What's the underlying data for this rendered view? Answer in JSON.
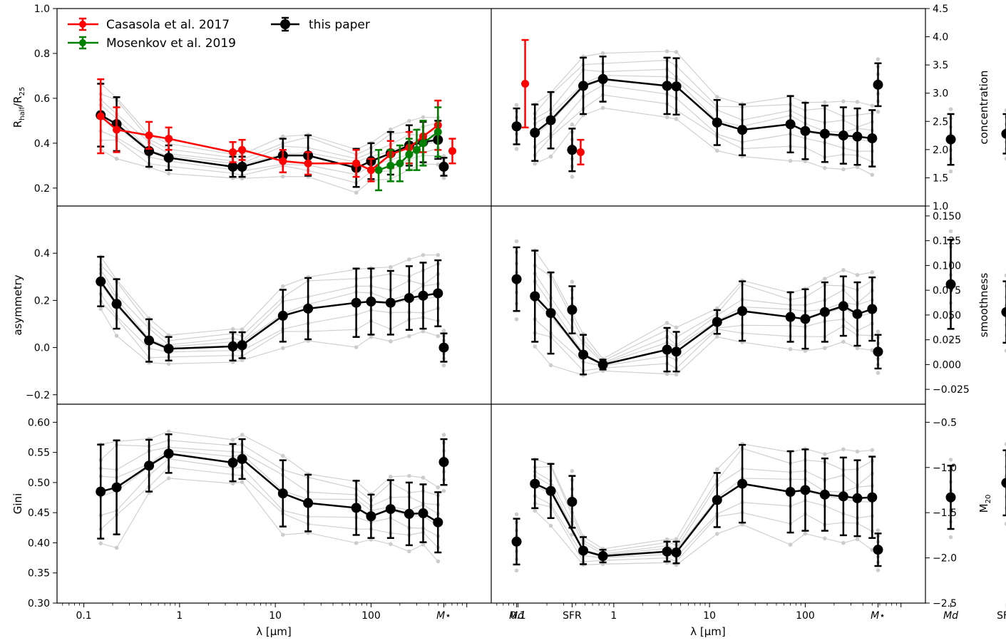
{
  "shared": {
    "xlabel": "λ [μm]",
    "x_tick_labels": [
      "0.1",
      "1",
      "10",
      "100"
    ],
    "extra_categories": [
      "M⋆",
      "Md",
      "SFR"
    ]
  },
  "legend": [
    {
      "label": "Casasola et al. 2017",
      "color": "#ff0000"
    },
    {
      "label": "Mosenkov et al. 2019",
      "color": "#008000"
    },
    {
      "label": "this paper",
      "color": "#000000"
    }
  ],
  "chart_data": [
    {
      "type": "scatter",
      "panel": "top-left",
      "ylabel": "Rhalf/R25",
      "ylim": [
        0.12,
        1.0
      ],
      "yticks": [
        "0.2",
        "0.4",
        "0.6",
        "0.8",
        "1.0"
      ],
      "series": [
        {
          "name": "this paper",
          "x": [
            0.15,
            0.22,
            0.48,
            0.77,
            3.6,
            4.5,
            12,
            22,
            70,
            100,
            160,
            250,
            350,
            500
          ],
          "y": [
            0.525,
            0.485,
            0.365,
            0.335,
            0.295,
            0.295,
            0.345,
            0.345,
            0.29,
            0.32,
            0.355,
            0.39,
            0.405,
            0.415
          ],
          "err": [
            0.14,
            0.12,
            0.07,
            0.055,
            0.045,
            0.045,
            0.075,
            0.09,
            0.085,
            0.08,
            0.095,
            0.09,
            0.09,
            0.085
          ],
          "extra": {
            "Mstar": [
              0.295,
              0.04
            ],
            "Md": [
              0.475,
              0.08
            ],
            "SFR": [
              0.37,
              0.095
            ]
          }
        },
        {
          "name": "Casasola et al. 2017",
          "x": [
            0.15,
            0.22,
            0.48,
            0.77,
            3.6,
            4.5,
            12,
            22,
            70,
            100,
            160,
            250,
            350,
            500
          ],
          "y": [
            0.52,
            0.46,
            0.435,
            0.42,
            0.36,
            0.37,
            0.32,
            0.31,
            0.31,
            0.28,
            0.35,
            0.38,
            0.43,
            0.48
          ],
          "err": [
            0.165,
            0.1,
            0.06,
            0.05,
            0.045,
            0.045,
            0.05,
            0.05,
            0.06,
            0.05,
            0.06,
            0.07,
            0.07,
            0.11
          ],
          "extra": {
            "Mstar": [
              0.365,
              0.055
            ],
            "Md": [
              0.665,
              0.195
            ],
            "SFR": [
              0.36,
              0.055
            ]
          }
        },
        {
          "name": "Mosenkov et al. 2019",
          "x": [
            120,
            160,
            200,
            250,
            300,
            350,
            500
          ],
          "y": [
            0.28,
            0.3,
            0.31,
            0.35,
            0.37,
            0.4,
            0.45
          ],
          "err": [
            0.09,
            0.07,
            0.08,
            0.07,
            0.09,
            0.1,
            0.11
          ]
        }
      ]
    },
    {
      "type": "scatter",
      "panel": "top-right",
      "ylabel": "concentration",
      "ylim": [
        1.0,
        4.5
      ],
      "yticks": [
        "1.0",
        "1.5",
        "2.0",
        "2.5",
        "3.0",
        "3.5",
        "4.0",
        "4.5"
      ],
      "series": [
        {
          "name": "this paper",
          "x": [
            0.15,
            0.22,
            0.48,
            0.77,
            3.6,
            4.5,
            12,
            22,
            70,
            100,
            160,
            250,
            350,
            500
          ],
          "y": [
            2.3,
            2.52,
            3.13,
            3.25,
            3.13,
            3.12,
            2.48,
            2.35,
            2.45,
            2.33,
            2.28,
            2.25,
            2.23,
            2.2
          ],
          "err": [
            0.5,
            0.5,
            0.5,
            0.4,
            0.5,
            0.5,
            0.4,
            0.45,
            0.5,
            0.5,
            0.5,
            0.5,
            0.5,
            0.5
          ],
          "extra": {
            "Mstar": [
              3.15,
              0.38
            ],
            "Md": [
              2.18,
              0.45
            ],
            "SFR": [
              2.28,
              0.35
            ]
          }
        }
      ]
    },
    {
      "type": "scatter",
      "panel": "middle-left",
      "ylabel": "asymmetry",
      "ylim": [
        -0.24,
        0.6
      ],
      "yticks": [
        "−0.2",
        "0.0",
        "0.2",
        "0.4"
      ],
      "series": [
        {
          "name": "this paper",
          "x": [
            0.15,
            0.22,
            0.48,
            0.77,
            3.6,
            4.5,
            12,
            22,
            70,
            100,
            160,
            250,
            350,
            500
          ],
          "y": [
            0.28,
            0.185,
            0.03,
            -0.005,
            0.005,
            0.01,
            0.135,
            0.165,
            0.19,
            0.195,
            0.19,
            0.21,
            0.22,
            0.23
          ],
          "err": [
            0.105,
            0.105,
            0.09,
            0.05,
            0.06,
            0.055,
            0.11,
            0.13,
            0.145,
            0.14,
            0.135,
            0.135,
            0.14,
            0.14
          ],
          "extra": {
            "Mstar": [
              0.0,
              0.06
            ],
            "Md": [
              0.29,
              0.135
            ],
            "SFR": [
              0.16,
              0.1
            ]
          }
        }
      ]
    },
    {
      "type": "scatter",
      "panel": "middle-right",
      "ylabel": "smoothness",
      "ylim": [
        -0.04,
        0.16
      ],
      "yticks": [
        "−0.025",
        "0.000",
        "0.025",
        "0.050",
        "0.075",
        "0.100",
        "0.125",
        "0.150"
      ],
      "series": [
        {
          "name": "this paper",
          "x": [
            0.15,
            0.22,
            0.48,
            0.77,
            3.6,
            4.5,
            12,
            22,
            70,
            100,
            160,
            250,
            350,
            500
          ],
          "y": [
            0.069,
            0.052,
            0.01,
            0.0,
            0.015,
            0.013,
            0.043,
            0.054,
            0.048,
            0.046,
            0.053,
            0.059,
            0.051,
            0.056
          ],
          "err": [
            0.046,
            0.041,
            0.02,
            0.005,
            0.022,
            0.02,
            0.012,
            0.03,
            0.025,
            0.03,
            0.03,
            0.03,
            0.032,
            0.032
          ],
          "extra": {
            "Mstar": [
              0.013,
              0.017
            ],
            "Md": [
              0.081,
              0.045
            ],
            "SFR": [
              0.053,
              0.031
            ]
          }
        }
      ]
    },
    {
      "type": "scatter",
      "panel": "bottom-left",
      "ylabel": "Gini",
      "ylim": [
        0.3,
        0.63
      ],
      "yticks": [
        "0.30",
        "0.35",
        "0.40",
        "0.45",
        "0.50",
        "0.55",
        "0.60"
      ],
      "series": [
        {
          "name": "this paper",
          "x": [
            0.15,
            0.22,
            0.48,
            0.77,
            3.6,
            4.5,
            12,
            22,
            70,
            100,
            160,
            250,
            350,
            500
          ],
          "y": [
            0.485,
            0.492,
            0.528,
            0.548,
            0.533,
            0.539,
            0.482,
            0.466,
            0.458,
            0.444,
            0.456,
            0.448,
            0.449,
            0.434
          ],
          "err": [
            0.078,
            0.078,
            0.043,
            0.032,
            0.031,
            0.033,
            0.055,
            0.047,
            0.045,
            0.036,
            0.048,
            0.052,
            0.048,
            0.05
          ],
          "extra": {
            "Mstar": [
              0.534,
              0.038
            ],
            "Md": [
              0.402,
              0.038
            ],
            "SFR": [
              0.468,
              0.043
            ]
          }
        }
      ]
    },
    {
      "type": "scatter",
      "panel": "bottom-right",
      "ylabel": "M20",
      "ylim": [
        -2.5,
        -0.3
      ],
      "yticks": [
        "−2.5",
        "−2.0",
        "−1.5",
        "−1.0",
        "−0.5"
      ],
      "series": [
        {
          "name": "this paper",
          "x": [
            0.15,
            0.22,
            0.48,
            0.77,
            3.6,
            4.5,
            12,
            22,
            70,
            100,
            160,
            250,
            350,
            500
          ],
          "y": [
            -1.18,
            -1.26,
            -1.92,
            -1.98,
            -1.93,
            -1.94,
            -1.36,
            -1.18,
            -1.27,
            -1.25,
            -1.3,
            -1.32,
            -1.34,
            -1.33
          ],
          "err": [
            0.27,
            0.3,
            0.15,
            0.07,
            0.11,
            0.12,
            0.3,
            0.43,
            0.45,
            0.45,
            0.4,
            0.43,
            0.42,
            0.45
          ],
          "extra": {
            "Mstar": [
              -1.91,
              0.18
            ],
            "Md": [
              -1.33,
              0.35
            ],
            "SFR": [
              -1.17,
              0.36
            ]
          }
        }
      ]
    }
  ]
}
